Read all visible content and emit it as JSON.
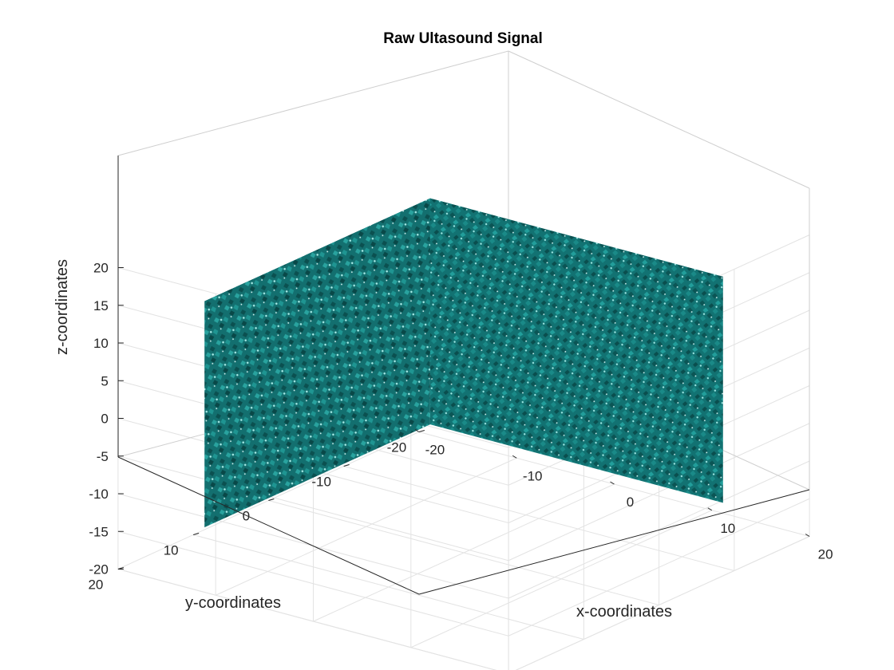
{
  "chart_data": {
    "type": "isosurface-3d",
    "title": "Raw Ultasound Signal",
    "xlabel": "x-coordinates",
    "ylabel": "y-coordinates",
    "zlabel": "z-coordinates",
    "xlim": [
      -20,
      20
    ],
    "ylim": [
      -20,
      20
    ],
    "zlim": [
      -20,
      20
    ],
    "xticks": [
      "-20",
      "-10",
      "0",
      "10",
      "20"
    ],
    "yticks": [
      "-20",
      "-10",
      "0",
      "10",
      "20"
    ],
    "zticks": [
      "-20",
      "-15",
      "-10",
      "-5",
      "0",
      "5",
      "10",
      "15",
      "20"
    ],
    "volume_extent": {
      "x": [
        -15,
        15
      ],
      "y": [
        -15,
        15
      ],
      "z": [
        -15,
        15
      ]
    },
    "surface_color": "#137a7a",
    "grid": true,
    "box": "open (back planes shown)",
    "view": "default 3-D perspective"
  }
}
